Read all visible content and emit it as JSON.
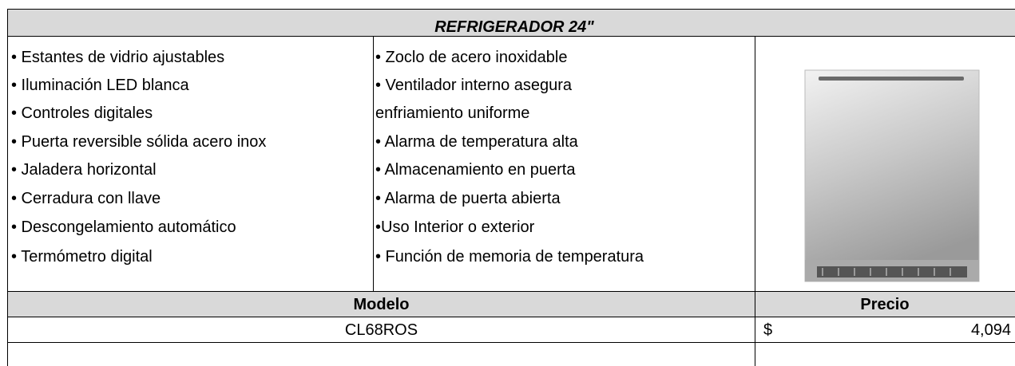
{
  "title": "REFRIGERADOR 24\"",
  "features_left": [
    "• Estantes de vidrio ajustables",
    "• Iluminación LED blanca",
    "• Controles digitales",
    "• Puerta reversible sólida acero inox",
    "• Jaladera horizontal",
    "• Cerradura con llave",
    "• Descongelamiento automático",
    "• Termómetro digital"
  ],
  "features_right": [
    "• Zoclo de acero inoxidable",
    "• Ventilador interno asegura",
    "enfriamiento uniforme",
    "• Alarma de temperatura alta",
    "• Almacenamiento en puerta",
    "• Alarma de puerta abierta",
    "•Uso Interior o exterior",
    "• Función de memoria de temperatura"
  ],
  "table": {
    "headers": [
      "Modelo",
      "Precio"
    ],
    "rows": [
      [
        "CL68ROS",
        "$",
        "4,094"
      ]
    ]
  }
}
